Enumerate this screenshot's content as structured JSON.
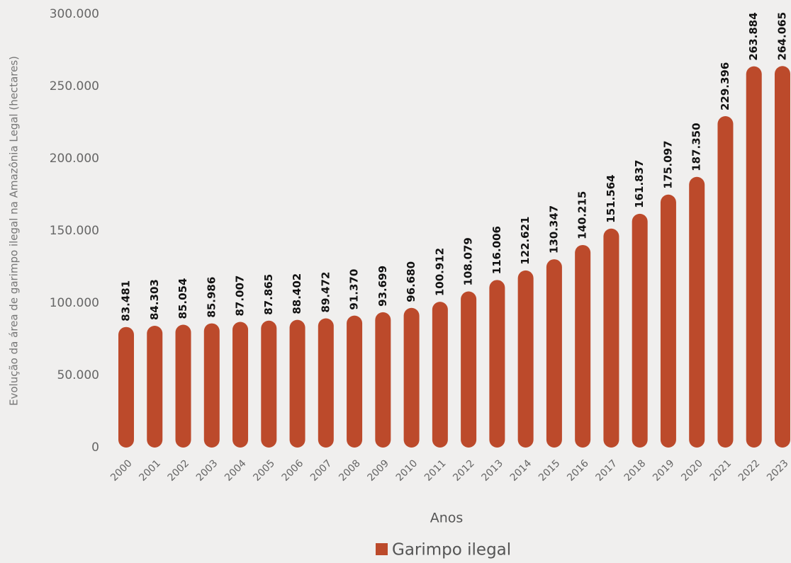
{
  "chart_data": {
    "type": "bar",
    "y_label": "Evolução da área de garimpo ilegal na Amazônia Legal (hectares)",
    "x_label": "Anos",
    "categories": [
      "2000",
      "2001",
      "2002",
      "2003",
      "2004",
      "2005",
      "2006",
      "2007",
      "2008",
      "2009",
      "2010",
      "2011",
      "2012",
      "2013",
      "2014",
      "2015",
      "2016",
      "2017",
      "2018",
      "2019",
      "2020",
      "2021",
      "2022",
      "2023"
    ],
    "series": [
      {
        "name": "Garimpo ilegal",
        "color": "#bc4a2b",
        "values": [
          83481,
          84303,
          85054,
          85986,
          87007,
          87865,
          88402,
          89472,
          91370,
          93699,
          96680,
          100912,
          108079,
          116006,
          122621,
          130347,
          140215,
          151564,
          161837,
          175097,
          187350,
          229396,
          263884,
          264065
        ],
        "value_labels": [
          "83.481",
          "84.303",
          "85.054",
          "85.986",
          "87.007",
          "87.865",
          "88.402",
          "89.472",
          "91.370",
          "93.699",
          "96.680",
          "100.912",
          "108.079",
          "116.006",
          "122.621",
          "130.347",
          "140.215",
          "151.564",
          "161.837",
          "175.097",
          "187.350",
          "229.396",
          "263.884",
          "264.065"
        ]
      }
    ],
    "ylim": [
      0,
      300000
    ],
    "yticks": [
      0,
      {
        "value": 50000,
        "label": "50.000"
      },
      {
        "value": 100000,
        "label": "100.000"
      },
      {
        "value": 150000,
        "label": "150.000"
      },
      {
        "value": 200000,
        "label": "200.000"
      },
      {
        "value": 250000,
        "label": "250.000"
      },
      {
        "value": 300000,
        "label": "300.000"
      }
    ],
    "grid": false
  }
}
